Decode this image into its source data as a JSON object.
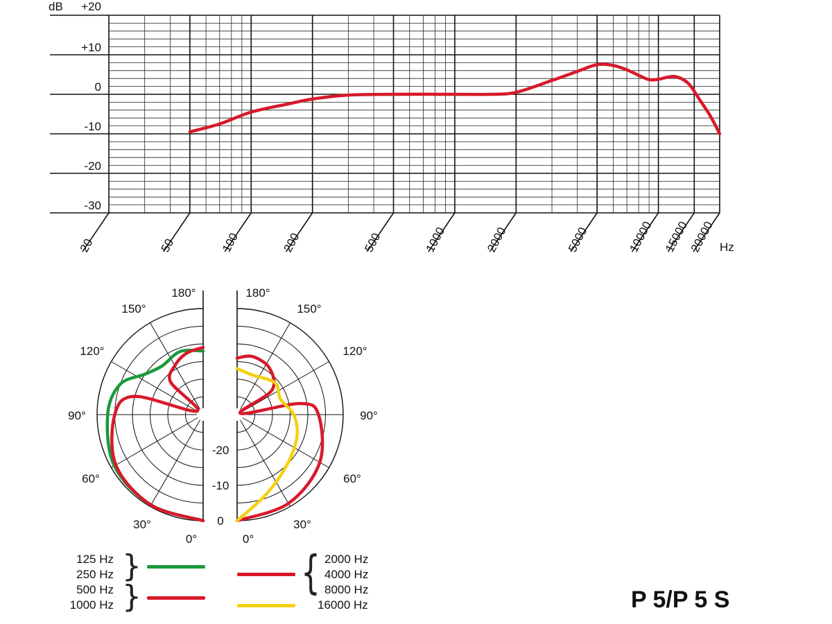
{
  "chart_data": [
    {
      "type": "line",
      "xlabel": "Hz",
      "ylabel": "dB",
      "x_scale": "log",
      "xlim": [
        20,
        20000
      ],
      "ylim": [
        -30,
        20
      ],
      "x_tick_labels": [
        "20",
        "50",
        "100",
        "200",
        "500",
        "1000",
        "2000",
        "5000",
        "10000",
        "15000",
        "20000"
      ],
      "x_tick_values": [
        20,
        50,
        100,
        200,
        500,
        1000,
        2000,
        5000,
        10000,
        15000,
        20000
      ],
      "y_tick_labels": [
        "+20",
        "+10",
        "0",
        "-10",
        "-20",
        "-30"
      ],
      "y_tick_values": [
        20,
        10,
        0,
        -10,
        -20,
        -30
      ],
      "grid": true,
      "series": [
        {
          "color": "#d7192a",
          "x": [
            50,
            70,
            100,
            150,
            200,
            300,
            500,
            1000,
            1500,
            2000,
            3000,
            4000,
            5000,
            6000,
            7000,
            8000,
            9000,
            10000,
            12000,
            14000,
            16000,
            18000,
            20000
          ],
          "y": [
            -9.5,
            -7.5,
            -4.5,
            -2.5,
            -1.2,
            -0.2,
            0,
            0,
            0,
            0.5,
            3.5,
            5.8,
            7.5,
            7.3,
            6.2,
            4.8,
            3.7,
            3.8,
            4.5,
            2.8,
            -1.5,
            -5.5,
            -10
          ]
        }
      ]
    },
    {
      "type": "polar",
      "angle_labels_left": [
        "180°",
        "150°",
        "120°",
        "90°",
        "60°",
        "30°",
        "0°"
      ],
      "angle_labels_right": [
        "180°",
        "150°",
        "120°",
        "90°",
        "60°",
        "30°",
        "0°"
      ],
      "angle_values": [
        180,
        150,
        120,
        90,
        60,
        30,
        0
      ],
      "radial_labels": [
        "-20",
        "-10",
        "0"
      ],
      "radial_values": [
        -20,
        -10,
        0
      ],
      "radial_range_db": [
        -30,
        0
      ],
      "series": [
        {
          "name": "125 Hz / 250 Hz",
          "side": "left",
          "color": "#1a9a3c",
          "angles": [
            0,
            30,
            60,
            90,
            110,
            125,
            140,
            160,
            180
          ],
          "db": [
            0,
            -0.5,
            -1,
            -3,
            -5,
            -10,
            -12,
            -11,
            -12
          ]
        },
        {
          "name": "500 Hz / 1000 Hz",
          "side": "left",
          "color": "#d7192a",
          "angles": [
            0,
            30,
            60,
            90,
            105,
            120,
            135,
            150,
            165,
            180
          ],
          "db": [
            0,
            -0.5,
            -1.5,
            -5,
            -10,
            -28,
            -17,
            -14,
            -12,
            -11
          ]
        },
        {
          "name": "2000 Hz / 4000 Hz / 8000 Hz",
          "side": "right",
          "color": "#d7192a",
          "angles": [
            0,
            30,
            60,
            90,
            100,
            110,
            125,
            145,
            165,
            180
          ],
          "db": [
            0,
            -1,
            -3,
            -7,
            -12,
            -29,
            -18,
            -14,
            -13,
            -14
          ]
        },
        {
          "name": "16000 Hz",
          "side": "right",
          "color": "#f5d012",
          "angles": [
            0,
            20,
            45,
            70,
            90,
            110,
            130,
            160,
            180
          ],
          "db": [
            0,
            -6,
            -10,
            -12,
            -14,
            -17,
            -16,
            -18,
            -17
          ]
        }
      ]
    }
  ],
  "legend": {
    "left_group_a": [
      "125 Hz",
      "250 Hz"
    ],
    "left_group_b": [
      "500 Hz",
      "1000 Hz"
    ],
    "right_group_a": [
      "2000 Hz",
      "4000 Hz",
      "8000 Hz"
    ],
    "right_group_b": [
      "16000 Hz"
    ],
    "colors": {
      "green": "#1a9a3c",
      "red": "#d7192a",
      "yellow": "#f5d012"
    }
  },
  "model": "P 5/P 5 S"
}
